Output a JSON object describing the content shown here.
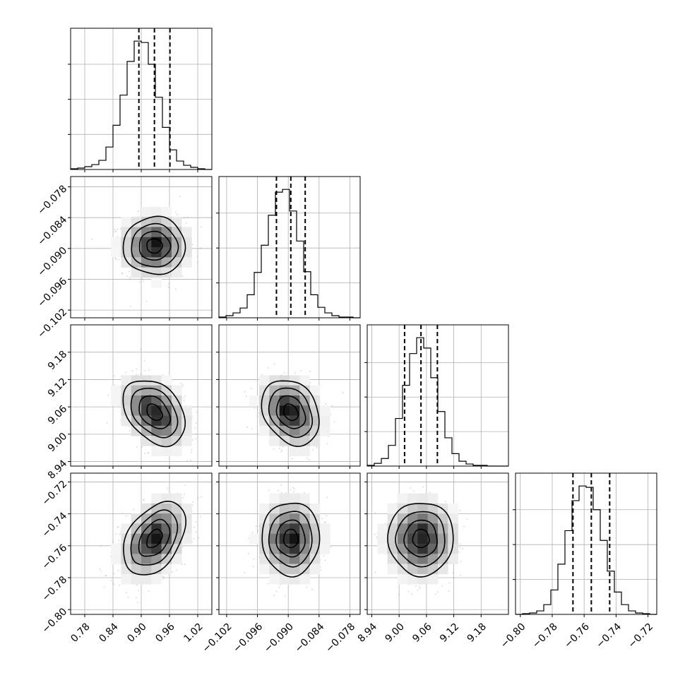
{
  "chart_data": {
    "type": "corner",
    "title": "",
    "parameters": [
      {
        "index": 0,
        "mean": 0.928,
        "sd": 0.033,
        "quantiles": [
          0.895,
          0.928,
          0.961
        ],
        "range": [
          0.75,
          1.05
        ],
        "ticks": [
          0.78,
          0.84,
          0.9,
          0.96,
          1.02
        ],
        "tick_labels": [
          "0.78",
          "0.84",
          "0.90",
          "0.96",
          "1.02"
        ]
      },
      {
        "index": 1,
        "mean": -0.0895,
        "sd": 0.0028,
        "quantiles": [
          -0.0923,
          -0.0895,
          -0.0867
        ],
        "range": [
          -0.1035,
          -0.076
        ],
        "ticks": [
          -0.102,
          -0.096,
          -0.09,
          -0.084,
          -0.078
        ],
        "tick_labels": [
          "−0.102",
          "−0.096",
          "−0.090",
          "−0.084",
          "−0.078"
        ]
      },
      {
        "index": 2,
        "mean": 9.048,
        "sd": 0.036,
        "quantiles": [
          9.012,
          9.048,
          9.084
        ],
        "range": [
          8.93,
          9.24
        ],
        "ticks": [
          8.94,
          9.0,
          9.06,
          9.12,
          9.18
        ],
        "tick_labels": [
          "8.94",
          "9.00",
          "9.06",
          "9.12",
          "9.18"
        ]
      },
      {
        "index": 3,
        "mean": -0.7555,
        "sd": 0.0115,
        "quantiles": [
          -0.767,
          -0.7555,
          -0.744
        ],
        "range": [
          -0.803,
          -0.7145
        ],
        "ticks": [
          -0.8,
          -0.78,
          -0.76,
          -0.74,
          -0.72
        ],
        "tick_labels": [
          "−0.80",
          "−0.78",
          "−0.76",
          "−0.74",
          "−0.72"
        ]
      }
    ],
    "correlations": [
      [
        1,
        0.0,
        -0.35,
        0.4
      ],
      [
        0.0,
        1,
        -0.25,
        0.0
      ],
      [
        -0.35,
        -0.25,
        1,
        0.0
      ],
      [
        0.4,
        0.0,
        0.0,
        1
      ]
    ],
    "histogram_bins": 20,
    "histogram_counts": [
      [
        1,
        2,
        4,
        7,
        13,
        32,
        63,
        106,
        154,
        183,
        181,
        150,
        103,
        60,
        28,
        12,
        6,
        3,
        1,
        0
      ],
      [
        1,
        3,
        7,
        14,
        33,
        65,
        104,
        147,
        180,
        184,
        153,
        110,
        66,
        33,
        15,
        7,
        3,
        1,
        1,
        0
      ],
      [
        1,
        4,
        11,
        30,
        69,
        117,
        163,
        186,
        171,
        128,
        79,
        41,
        18,
        7,
        3,
        1,
        1,
        0,
        0,
        0
      ],
      [
        0,
        1,
        2,
        5,
        14,
        35,
        72,
        120,
        163,
        184,
        182,
        150,
        106,
        62,
        32,
        14,
        5,
        2,
        1,
        0
      ]
    ],
    "contour_levels_sigma": [
      0.5,
      1.0,
      1.5,
      2.0
    ],
    "grid": true,
    "legend": "none"
  }
}
